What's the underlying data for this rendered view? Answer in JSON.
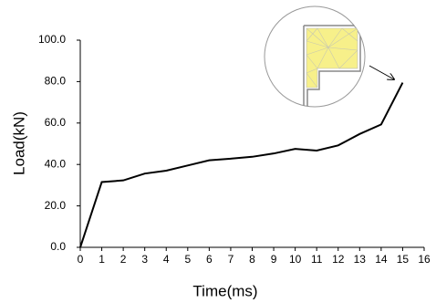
{
  "chart_data": {
    "type": "line",
    "x_label": "Time(ms)",
    "y_label": "Load(kN)",
    "x": [
      0,
      1,
      2,
      3,
      4,
      5,
      6,
      7,
      8,
      9,
      10,
      11,
      12,
      13,
      14,
      15
    ],
    "values": [
      0,
      31.5,
      32.3,
      35.6,
      37,
      39.5,
      42,
      42.8,
      43.7,
      45.3,
      47.5,
      46.7,
      49.2,
      54.7,
      59.3,
      79.5
    ],
    "color": "#000000",
    "xlim": [
      0,
      16
    ],
    "xticks": [
      0,
      1,
      2,
      3,
      4,
      5,
      6,
      7,
      8,
      9,
      10,
      11,
      12,
      13,
      14,
      15,
      16
    ],
    "ylim": [
      0,
      100
    ],
    "yticks": [
      {
        "value": 0,
        "label": "0.0"
      },
      {
        "value": 20,
        "label": "20.0"
      },
      {
        "value": 40,
        "label": "40.0"
      },
      {
        "value": 60,
        "label": "60.0"
      },
      {
        "value": 80,
        "label": "80.0"
      },
      {
        "value": 100,
        "label": "100.0"
      }
    ],
    "grid": false
  }
}
